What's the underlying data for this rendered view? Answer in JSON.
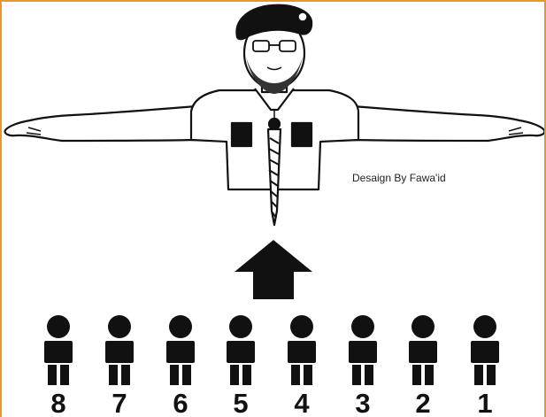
{
  "credit": "Desaign By Fawa'id",
  "row_numbers": [
    "8",
    "7",
    "6",
    "5",
    "4",
    "3",
    "2",
    "1"
  ],
  "colors": {
    "frame": "#e39a2c",
    "ink": "#111111",
    "background": "#ffffff"
  },
  "icons": {
    "leader": "scout-leader-arms-outstretched-icon",
    "direction": "up-arrow-icon",
    "members": "standing-person-icon"
  }
}
